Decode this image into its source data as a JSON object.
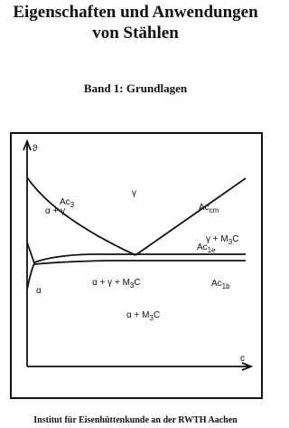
{
  "header": {
    "title_lines": [
      "Eigenschaften und Anwendungen",
      "von Stählen"
    ],
    "subtitle": "Band 1: Grundlagen"
  },
  "diagram": {
    "axis_y": "ϑ",
    "axis_x": "c",
    "labels": [
      {
        "main": "Ac",
        "sub": "3"
      },
      {
        "main": "γ"
      },
      {
        "main": "Ac",
        "sub": "cm"
      },
      {
        "main": "α + γ"
      },
      {
        "main": "Ac",
        "sub": "1e"
      },
      {
        "main": "γ + M",
        "sub": "3",
        "tail": "C"
      },
      {
        "main": "α + γ + M",
        "sub": "3",
        "tail": "C"
      },
      {
        "main": "Ac",
        "sub": "1b"
      },
      {
        "main": "α"
      },
      {
        "main": "α + M",
        "sub": "3",
        "tail": "C"
      }
    ]
  },
  "footer": "Institut für Eisenhüttenkunde an der RWTH Aachen"
}
